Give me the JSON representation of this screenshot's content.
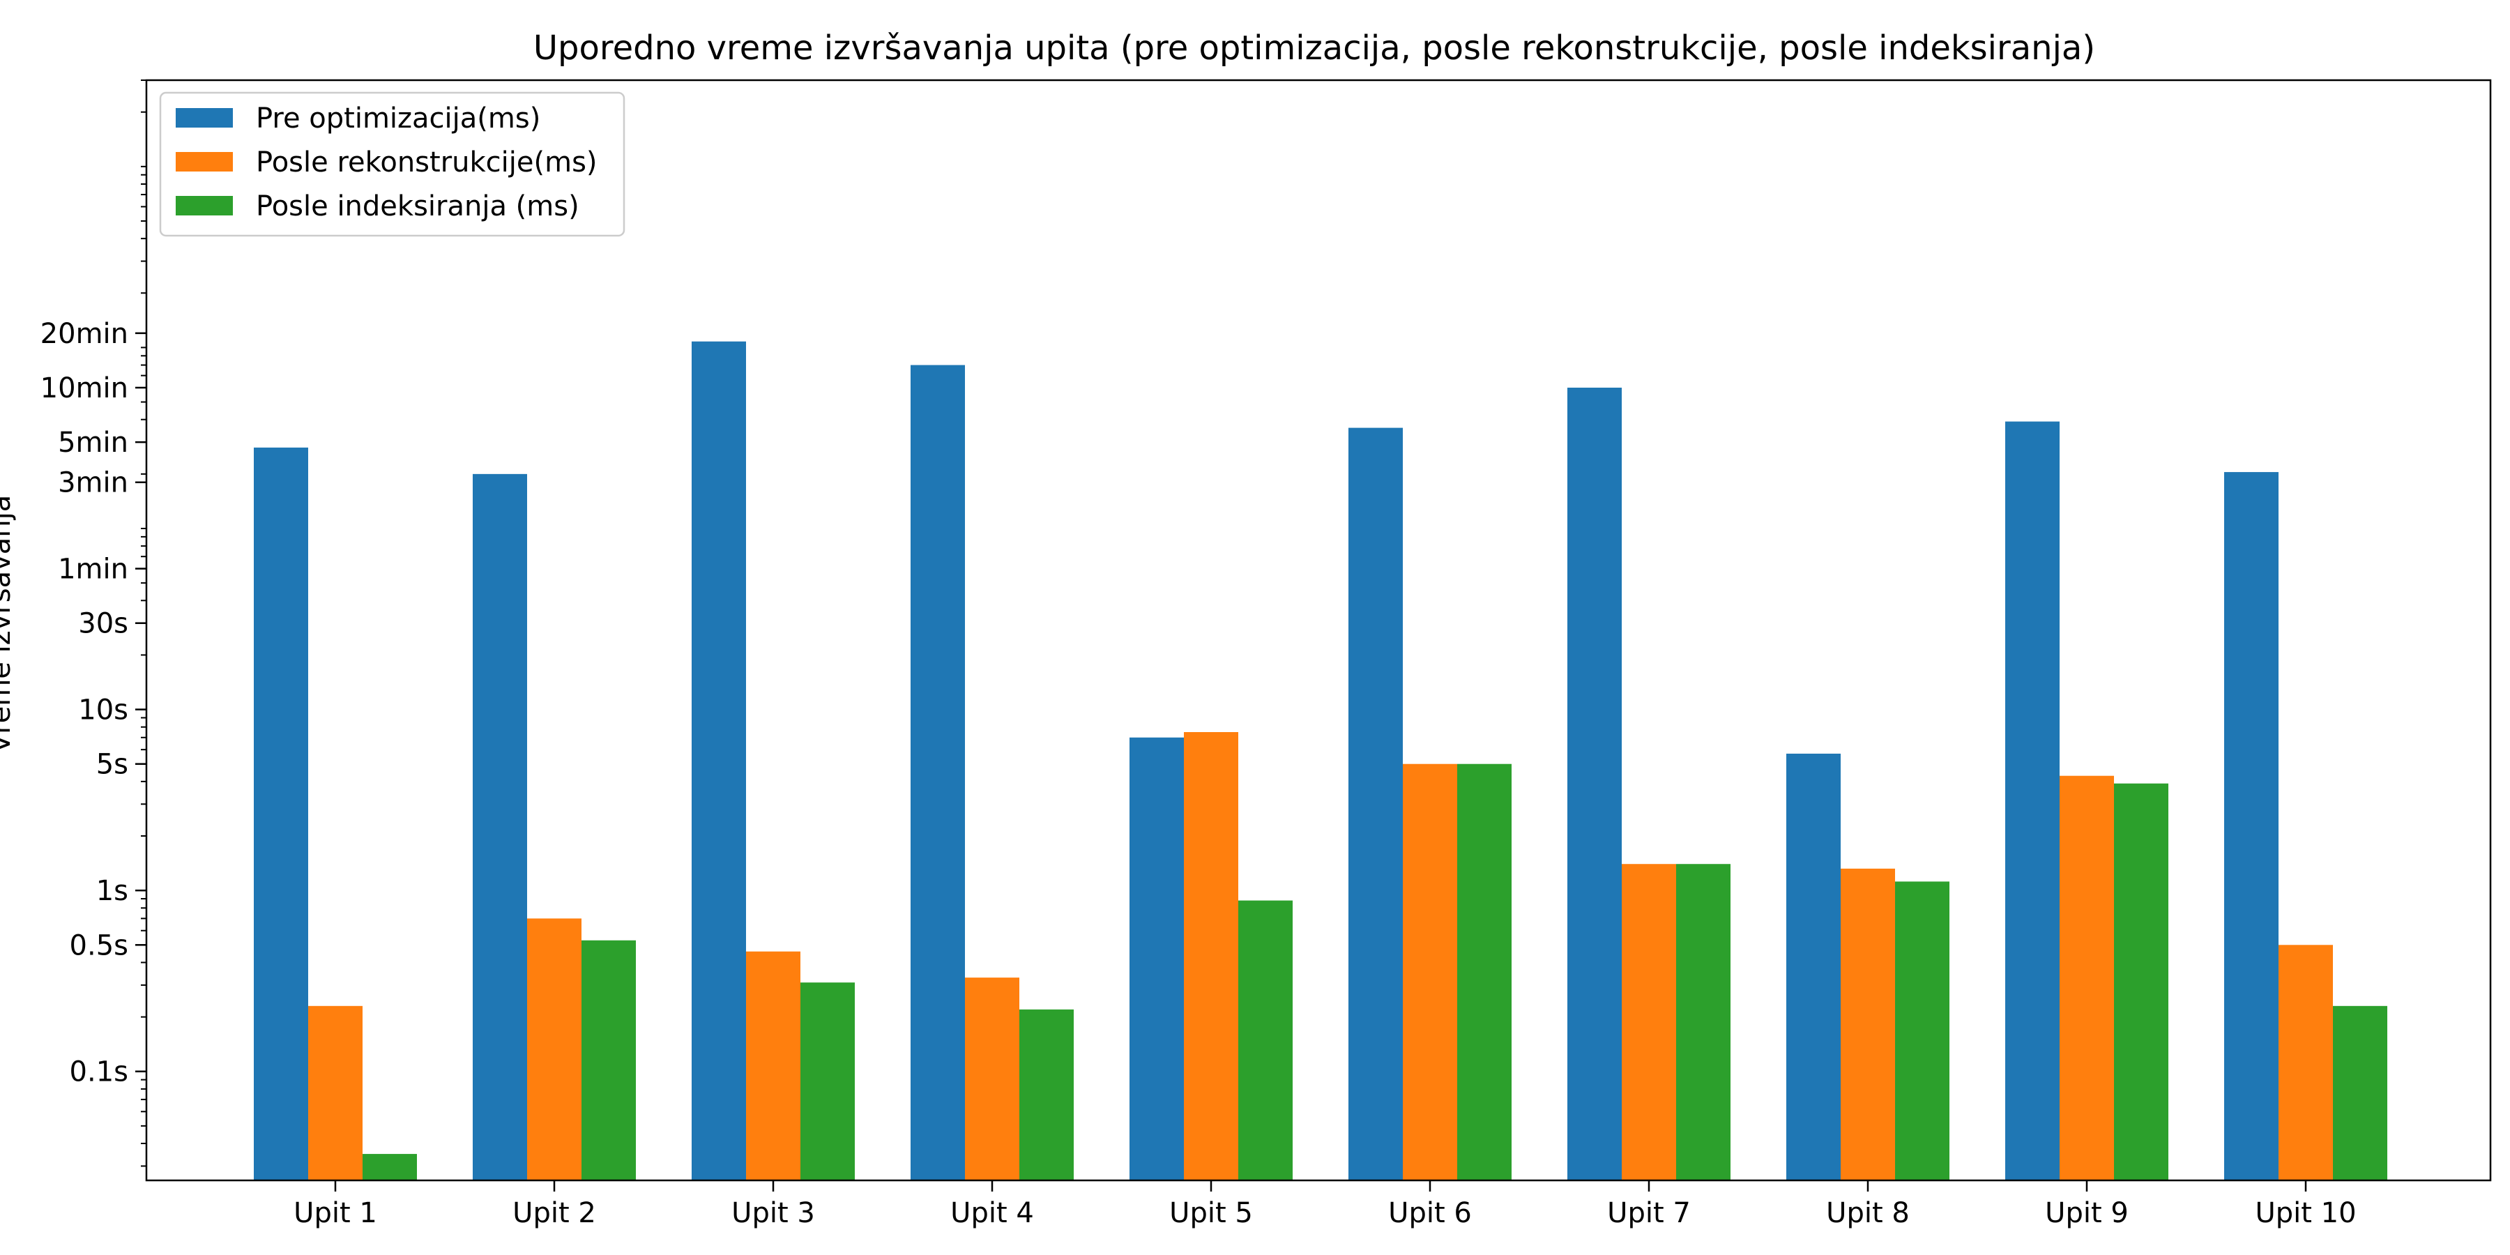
{
  "chart_data": {
    "type": "bar",
    "title": "Uporedno vreme izvršavanja upita (pre optimizacija, posle rekonstrukcije, posle indeksiranja)",
    "xlabel": "",
    "ylabel": "Vreme izvršavanja",
    "yscale": "log",
    "ylim_ms": [
      25,
      30000000
    ],
    "yticks": [
      {
        "value_ms": 100,
        "label": "0.1s"
      },
      {
        "value_ms": 500,
        "label": "0.5s"
      },
      {
        "value_ms": 1000,
        "label": "1s"
      },
      {
        "value_ms": 5000,
        "label": "5s"
      },
      {
        "value_ms": 10000,
        "label": "10s"
      },
      {
        "value_ms": 30000,
        "label": "30s"
      },
      {
        "value_ms": 60000,
        "label": "1min"
      },
      {
        "value_ms": 180000,
        "label": "3min"
      },
      {
        "value_ms": 300000,
        "label": "5min"
      },
      {
        "value_ms": 600000,
        "label": "10min"
      },
      {
        "value_ms": 1200000,
        "label": "20min"
      }
    ],
    "categories": [
      "Upit 1",
      "Upit 2",
      "Upit 3",
      "Upit 4",
      "Upit 5",
      "Upit 6",
      "Upit 7",
      "Upit 8",
      "Upit 9",
      "Upit 10"
    ],
    "series": [
      {
        "name": "Pre optimizacija(ms)",
        "color": "#1f77b4",
        "values": [
          280000,
          200000,
          1080000,
          800000,
          7000,
          360000,
          600000,
          5700,
          390000,
          205000
        ]
      },
      {
        "name": "Posle rekonstrukcije(ms)",
        "color": "#ff7f0e",
        "values": [
          230,
          700,
          460,
          330,
          7500,
          5000,
          1400,
          1320,
          4300,
          500
        ]
      },
      {
        "name": "Posle indeksiranja (ms)",
        "color": "#2ca02c",
        "values": [
          35,
          530,
          310,
          220,
          880,
          5000,
          1400,
          1120,
          3900,
          230
        ]
      }
    ],
    "legend": "top-left",
    "grid": false
  }
}
